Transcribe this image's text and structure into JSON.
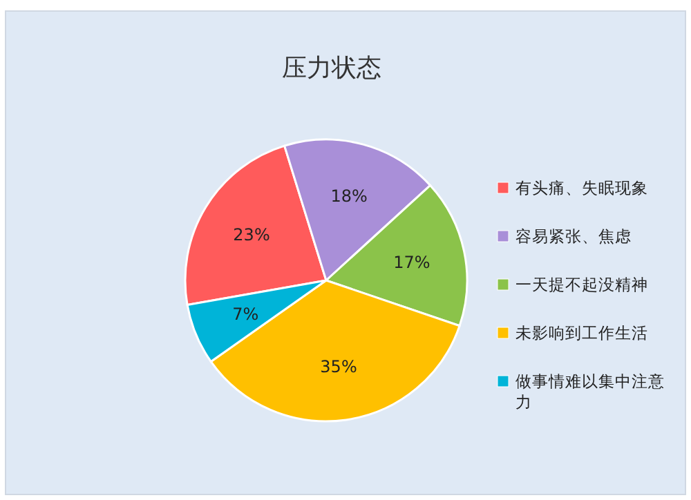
{
  "chart_data": {
    "type": "pie",
    "title": "压力状态",
    "categories": [
      "有头痛、失眠现象",
      "容易紧张、焦虑",
      "一天提不起没精神",
      "未影响到工作生活",
      "做事情难以集中注意力"
    ],
    "values": [
      23,
      18,
      17,
      35,
      7
    ],
    "value_labels": [
      "23%",
      "18%",
      "17%",
      "35%",
      "7%"
    ],
    "colors": [
      "#ff5b5b",
      "#a98fd8",
      "#8bc34a",
      "#ffc000",
      "#00b4d8"
    ],
    "legend": "right"
  }
}
